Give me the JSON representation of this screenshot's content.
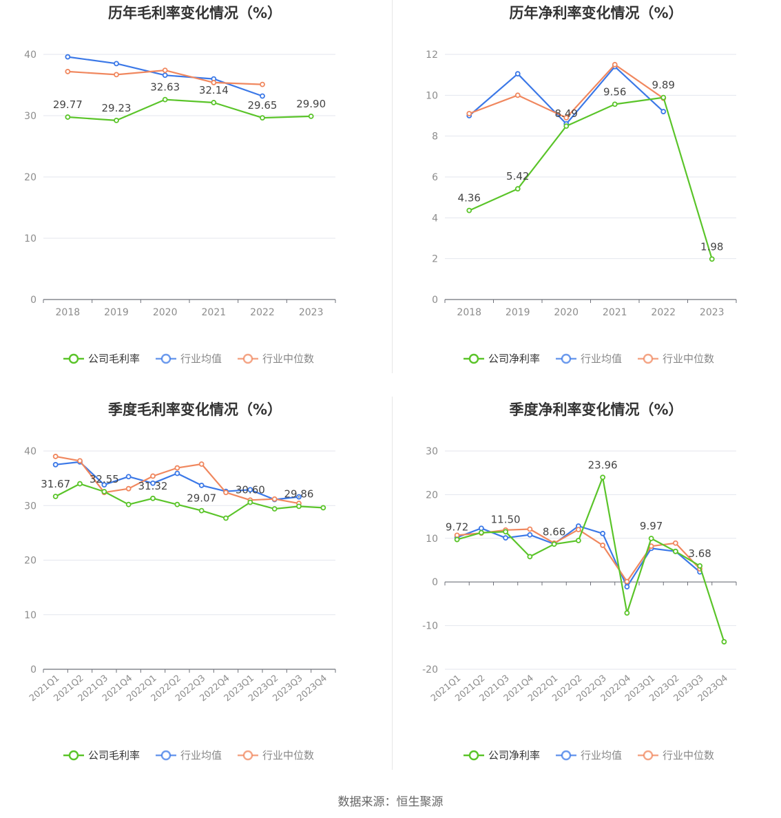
{
  "colors": {
    "company": "#5ac429",
    "avg": "#3b78e7",
    "median": "#f0875e",
    "grid": "#e3e6ee",
    "axis": "#6e7079",
    "tick": "#8c8c8c",
    "label": "#444444"
  },
  "source": "数据来源：恒生聚源",
  "chart_data": [
    {
      "type": "line",
      "title": "历年毛利率变化情况（%）",
      "categories": [
        "2018",
        "2019",
        "2020",
        "2021",
        "2022",
        "2023"
      ],
      "ylim": [
        0,
        40
      ],
      "yticks": [
        "0",
        "10",
        "20",
        "30",
        "40"
      ],
      "legend": [
        "公司毛利率",
        "行业均值",
        "行业中位数"
      ],
      "series": [
        {
          "name": "公司毛利率",
          "values": [
            29.77,
            29.23,
            32.63,
            32.14,
            29.65,
            29.9
          ],
          "labels": [
            "29.77",
            "29.23",
            "32.63",
            "32.14",
            "29.65",
            "29.90"
          ]
        },
        {
          "name": "行业均值",
          "values": [
            39.6,
            38.5,
            36.6,
            36.0,
            33.2,
            null
          ]
        },
        {
          "name": "行业中位数",
          "values": [
            37.2,
            36.7,
            37.4,
            35.4,
            35.1,
            null
          ]
        }
      ]
    },
    {
      "type": "line",
      "title": "历年净利率变化情况（%）",
      "categories": [
        "2018",
        "2019",
        "2020",
        "2021",
        "2022",
        "2023"
      ],
      "ylim": [
        0,
        12
      ],
      "yticks": [
        "0",
        "2",
        "4",
        "6",
        "8",
        "10",
        "12"
      ],
      "legend": [
        "公司净利率",
        "行业均值",
        "行业中位数"
      ],
      "series": [
        {
          "name": "公司净利率",
          "values": [
            4.36,
            5.42,
            8.49,
            9.56,
            9.89,
            1.98
          ],
          "labels": [
            "4.36",
            "5.42",
            "8.49",
            "9.56",
            "9.89",
            "1.98"
          ]
        },
        {
          "name": "行业均值",
          "values": [
            9.0,
            11.05,
            8.6,
            11.4,
            9.2,
            null
          ]
        },
        {
          "name": "行业中位数",
          "values": [
            9.1,
            10.0,
            8.9,
            11.5,
            9.85,
            null
          ]
        }
      ]
    },
    {
      "type": "line",
      "title": "季度毛利率变化情况（%）",
      "categories": [
        "2021Q1",
        "2021Q2",
        "2021Q3",
        "2021Q4",
        "2022Q1",
        "2022Q2",
        "2022Q3",
        "2022Q4",
        "2023Q1",
        "2023Q2",
        "2023Q3",
        "2023Q4"
      ],
      "ylim": [
        0,
        40
      ],
      "yticks": [
        "0",
        "10",
        "20",
        "30",
        "40"
      ],
      "legend": [
        "公司毛利率",
        "行业均值",
        "行业中位数"
      ],
      "series": [
        {
          "name": "公司毛利率",
          "values": [
            31.67,
            34.0,
            32.55,
            30.2,
            31.32,
            30.2,
            29.07,
            27.7,
            30.6,
            29.4,
            29.86,
            29.6
          ],
          "labels": [
            "31.67",
            "",
            "32.55",
            "",
            "31.32",
            "",
            "29.07",
            "",
            "30.60",
            "",
            "29.86",
            ""
          ]
        },
        {
          "name": "行业均值",
          "values": [
            37.5,
            38.0,
            33.8,
            35.3,
            34.1,
            35.9,
            33.7,
            32.6,
            32.9,
            31.1,
            31.6,
            null
          ]
        },
        {
          "name": "行业中位数",
          "values": [
            39.0,
            38.2,
            32.4,
            33.1,
            35.4,
            36.9,
            37.6,
            32.4,
            31.0,
            31.2,
            30.4,
            null
          ]
        }
      ]
    },
    {
      "type": "line",
      "title": "季度净利率变化情况（%）",
      "categories": [
        "2021Q1",
        "2021Q2",
        "2021Q3",
        "2021Q4",
        "2022Q1",
        "2022Q2",
        "2022Q3",
        "2022Q4",
        "2023Q1",
        "2023Q2",
        "2023Q3",
        "2023Q4"
      ],
      "ylim": [
        -20,
        30
      ],
      "yticks": [
        "-20",
        "-10",
        "0",
        "10",
        "20",
        "30"
      ],
      "legend": [
        "公司净利率",
        "行业均值",
        "行业中位数"
      ],
      "series": [
        {
          "name": "公司净利率",
          "values": [
            9.72,
            11.3,
            11.5,
            5.8,
            8.66,
            9.5,
            23.96,
            -7.1,
            9.97,
            7.0,
            3.68,
            -13.7
          ],
          "labels": [
            "9.72",
            "",
            "11.50",
            "",
            "8.66",
            "",
            "23.96",
            "",
            "9.97",
            "",
            "3.68",
            ""
          ]
        },
        {
          "name": "行业均值",
          "values": [
            10.2,
            12.3,
            10.1,
            10.8,
            8.7,
            12.8,
            11.1,
            -1.1,
            7.7,
            7.0,
            2.3,
            null
          ]
        },
        {
          "name": "行业中位数",
          "values": [
            10.7,
            11.2,
            11.9,
            12.1,
            8.9,
            12.0,
            8.4,
            0.1,
            8.2,
            8.9,
            3.0,
            null
          ]
        }
      ]
    }
  ]
}
